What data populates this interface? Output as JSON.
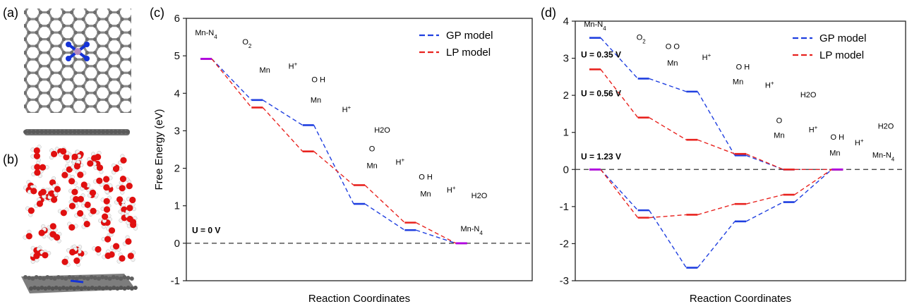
{
  "panels": {
    "a": "(a)",
    "b": "(b)",
    "c": "(c)",
    "d": "(d)"
  },
  "colors": {
    "gp": "#1f3fe0",
    "lp": "#e8231f",
    "both": "#b000e0",
    "zero_line": "#333333",
    "carbon": "#8a8a8a",
    "nitrogen": "#1533d6",
    "manganese": "#b68bbd",
    "oxygen": "#e01010",
    "hydrogen": "#f2f2f2"
  },
  "chart_data": [
    {
      "panel": "(c)",
      "type": "line",
      "ylabel": "Free Energy  (eV)",
      "xlabel": "Reaction Coordinates",
      "ylim": [
        -1,
        6
      ],
      "yticks": [
        "-1",
        "0",
        "1",
        "2",
        "3",
        "4",
        "5",
        "6"
      ],
      "condition": "U = 0 V",
      "legend": {
        "position": "top-right",
        "entries": [
          "GP model",
          "LP model"
        ]
      },
      "steps": 7,
      "series": [
        {
          "name": "GP model",
          "color": "#1f3fe0",
          "values": [
            4.92,
            3.82,
            3.15,
            1.05,
            0.35,
            0
          ]
        },
        {
          "name": "LP model",
          "color": "#e8231f",
          "values": [
            4.92,
            3.62,
            2.45,
            1.55,
            0.55,
            0
          ]
        }
      ],
      "species": [
        {
          "label": "Mn-N4",
          "x": 0,
          "y": 5.55
        },
        {
          "label": "O2",
          "x": 0.8,
          "y": 5.3
        },
        {
          "label": "Mn",
          "x": 1.15,
          "y": 4.55
        },
        {
          "label": "H+",
          "x": 1.7,
          "y": 4.65
        },
        {
          "label": "O H",
          "x": 2.2,
          "y": 4.3
        },
        {
          "label": "Mn",
          "x": 2.15,
          "y": 3.75
        },
        {
          "label": "H+",
          "x": 2.75,
          "y": 3.5
        },
        {
          "label": "H2O",
          "x": 3.45,
          "y": 2.95
        },
        {
          "label": "O",
          "x": 3.25,
          "y": 2.45
        },
        {
          "label": "Mn",
          "x": 3.25,
          "y": 2.0
        },
        {
          "label": "H+",
          "x": 3.8,
          "y": 2.1
        },
        {
          "label": "O H",
          "x": 4.3,
          "y": 1.7
        },
        {
          "label": "Mn",
          "x": 4.3,
          "y": 1.25
        },
        {
          "label": "H+",
          "x": 4.8,
          "y": 1.35
        },
        {
          "label": "H2O",
          "x": 5.35,
          "y": 1.2
        },
        {
          "label": "Mn-N4",
          "x": 5.2,
          "y": 0.32
        }
      ]
    },
    {
      "panel": "(d)",
      "type": "line",
      "ylabel": "",
      "xlabel": "Reaction Coordinates",
      "ylim": [
        -3,
        4
      ],
      "yticks": [
        "-3",
        "-2",
        "-1",
        "0",
        "1",
        "2",
        "3",
        "4"
      ],
      "conditions": [
        "U = 0.35 V",
        "U = 0.56 V",
        "U = 1.23 V"
      ],
      "legend": {
        "position": "top-right",
        "entries": [
          "GP model",
          "LP model"
        ]
      },
      "steps": 7,
      "series": [
        {
          "name": "GP model",
          "color": "#1f3fe0",
          "values": [
            3.55,
            2.45,
            2.1,
            0.38,
            0,
            0
          ]
        },
        {
          "name": "LP model",
          "color": "#e8231f",
          "values": [
            2.7,
            1.4,
            0.8,
            0.42,
            0,
            0
          ]
        },
        {
          "name": "GP model",
          "color": "#1f3fe0",
          "values": [
            0,
            -1.1,
            -2.65,
            -1.4,
            -0.88,
            0
          ]
        },
        {
          "name": "LP model",
          "color": "#e8231f",
          "values": [
            0,
            -1.3,
            -1.22,
            -0.93,
            -0.68,
            0
          ]
        }
      ],
      "species": [
        {
          "label": "Mn-N4",
          "x": 0,
          "y": 3.85
        },
        {
          "label": "O2",
          "x": 0.95,
          "y": 3.5
        },
        {
          "label": "O O",
          "x": 1.6,
          "y": 3.25
        },
        {
          "label": "Mn",
          "x": 1.6,
          "y": 2.8
        },
        {
          "label": "H+",
          "x": 2.3,
          "y": 2.95
        },
        {
          "label": "O H",
          "x": 3.05,
          "y": 2.7
        },
        {
          "label": "Mn",
          "x": 2.95,
          "y": 2.3
        },
        {
          "label": "H+",
          "x": 3.6,
          "y": 2.2
        },
        {
          "label": "H2O",
          "x": 4.4,
          "y": 1.95
        },
        {
          "label": "O",
          "x": 3.8,
          "y": 1.25
        },
        {
          "label": "Mn",
          "x": 3.8,
          "y": 0.85
        },
        {
          "label": "H+",
          "x": 4.5,
          "y": 1.0
        },
        {
          "label": "O H",
          "x": 5.0,
          "y": 0.8
        },
        {
          "label": "Mn",
          "x": 4.95,
          "y": 0.38
        },
        {
          "label": "H+",
          "x": 5.45,
          "y": 0.65
        },
        {
          "label": "H2O",
          "x": 6.0,
          "y": 1.1
        },
        {
          "label": "Mn-N4",
          "x": 5.95,
          "y": 0.32
        }
      ]
    }
  ]
}
